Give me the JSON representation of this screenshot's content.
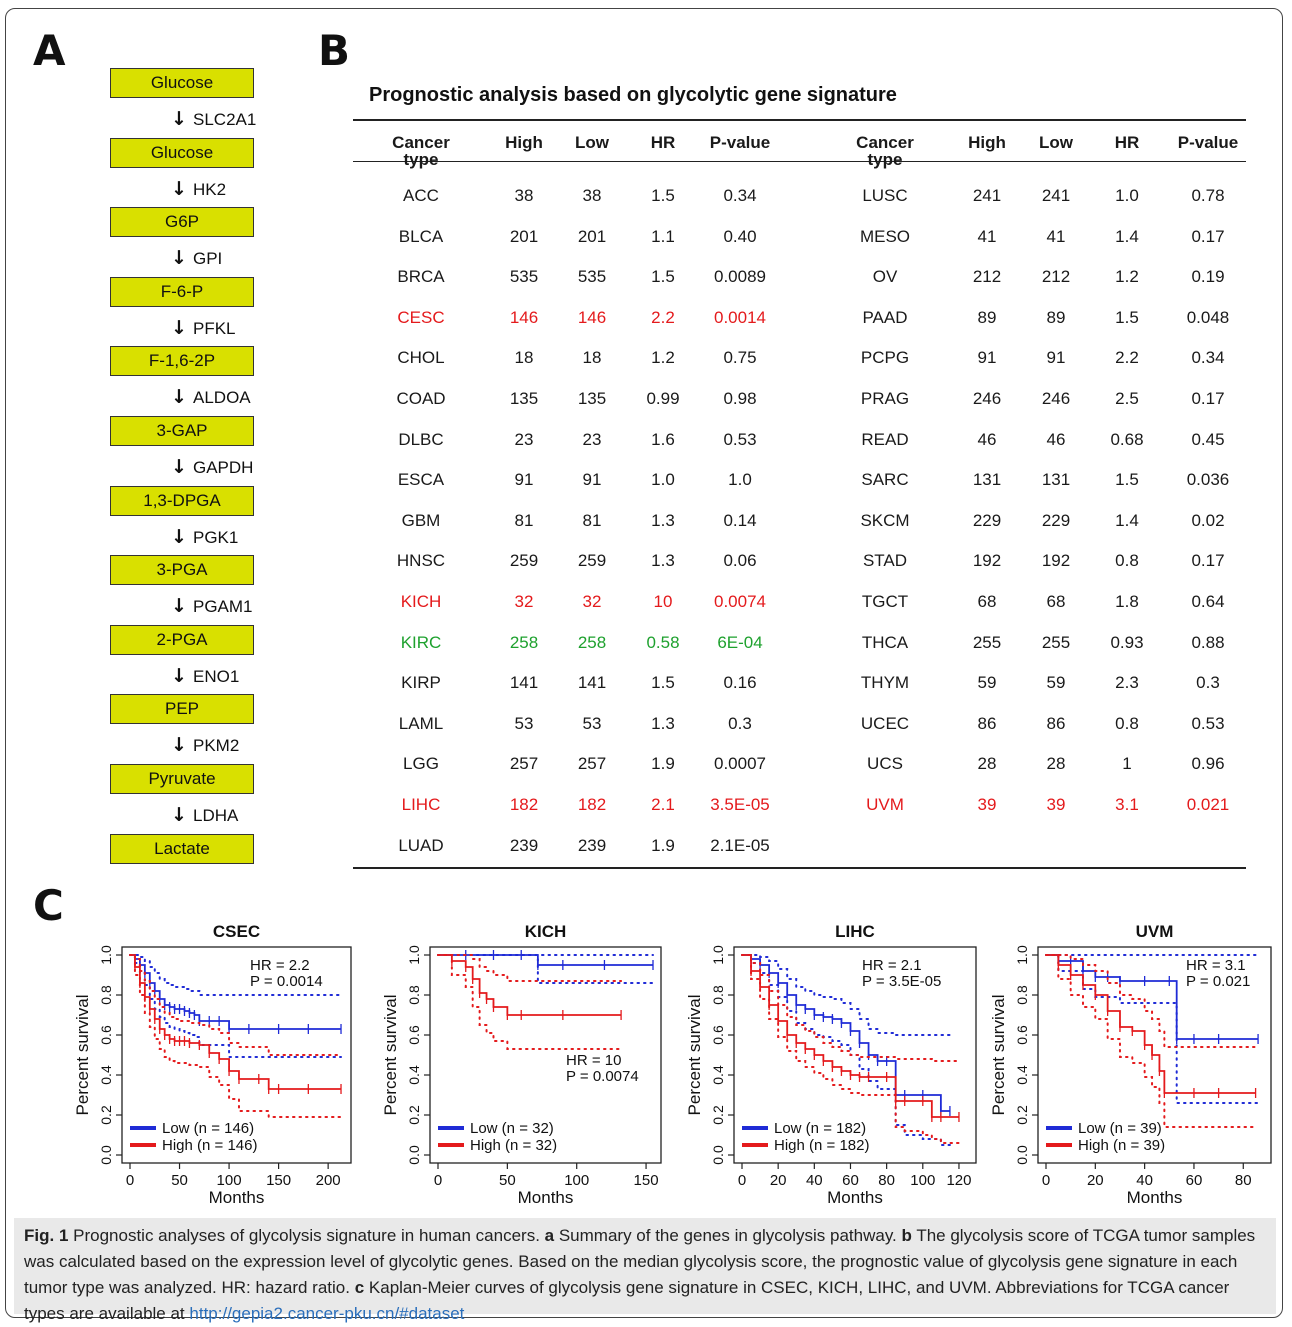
{
  "panel_labels": {
    "a": "A",
    "b": "B",
    "c": "C"
  },
  "pathway": {
    "metabolites": [
      "Glucose",
      "Glucose",
      "G6P",
      "F-6-P",
      "F-1,6-2P",
      "3-GAP",
      "1,3-DPGA",
      "3-PGA",
      "2-PGA",
      "PEP",
      "Pyruvate",
      "Lactate"
    ],
    "genes": [
      "SLC2A1",
      "HK2",
      "GPI",
      "PFKL",
      "ALDOA",
      "GAPDH",
      "PGK1",
      "PGAM1",
      "ENO1",
      "PKM2",
      "LDHA"
    ],
    "box_color": "#d9e000"
  },
  "table": {
    "title": "Prognostic analysis based on glycolytic gene signature",
    "headers": [
      "Cancer type",
      "High",
      "Low",
      "HR",
      "P-value"
    ],
    "colors": {
      "red": "#e41a1c",
      "green": "#1ea12e"
    },
    "left": [
      {
        "type": "ACC",
        "high": "38",
        "low": "38",
        "hr": "1.5",
        "p": "0.34",
        "color": ""
      },
      {
        "type": "BLCA",
        "high": "201",
        "low": "201",
        "hr": "1.1",
        "p": "0.40",
        "color": ""
      },
      {
        "type": "BRCA",
        "high": "535",
        "low": "535",
        "hr": "1.5",
        "p": "0.0089",
        "color": ""
      },
      {
        "type": "CESC",
        "high": "146",
        "low": "146",
        "hr": "2.2",
        "p": "0.0014",
        "color": "red"
      },
      {
        "type": "CHOL",
        "high": "18",
        "low": "18",
        "hr": "1.2",
        "p": "0.75",
        "color": ""
      },
      {
        "type": "COAD",
        "high": "135",
        "low": "135",
        "hr": "0.99",
        "p": "0.98",
        "color": ""
      },
      {
        "type": "DLBC",
        "high": "23",
        "low": "23",
        "hr": "1.6",
        "p": "0.53",
        "color": ""
      },
      {
        "type": "ESCA",
        "high": "91",
        "low": "91",
        "hr": "1.0",
        "p": "1.0",
        "color": ""
      },
      {
        "type": "GBM",
        "high": "81",
        "low": "81",
        "hr": "1.3",
        "p": "0.14",
        "color": ""
      },
      {
        "type": "HNSC",
        "high": "259",
        "low": "259",
        "hr": "1.3",
        "p": "0.06",
        "color": ""
      },
      {
        "type": "KICH",
        "high": "32",
        "low": "32",
        "hr": "10",
        "p": "0.0074",
        "color": "red"
      },
      {
        "type": "KIRC",
        "high": "258",
        "low": "258",
        "hr": "0.58",
        "p": "6E-04",
        "color": "green"
      },
      {
        "type": "KIRP",
        "high": "141",
        "low": "141",
        "hr": "1.5",
        "p": "0.16",
        "color": ""
      },
      {
        "type": "LAML",
        "high": "53",
        "low": "53",
        "hr": "1.3",
        "p": "0.3",
        "color": ""
      },
      {
        "type": "LGG",
        "high": "257",
        "low": "257",
        "hr": "1.9",
        "p": "0.0007",
        "color": ""
      },
      {
        "type": "LIHC",
        "high": "182",
        "low": "182",
        "hr": "2.1",
        "p": "3.5E-05",
        "color": "red"
      },
      {
        "type": "LUAD",
        "high": "239",
        "low": "239",
        "hr": "1.9",
        "p": "2.1E-05",
        "color": ""
      }
    ],
    "right": [
      {
        "type": "LUSC",
        "high": "241",
        "low": "241",
        "hr": "1.0",
        "p": "0.78",
        "color": ""
      },
      {
        "type": "MESO",
        "high": "41",
        "low": "41",
        "hr": "1.4",
        "p": "0.17",
        "color": ""
      },
      {
        "type": "OV",
        "high": "212",
        "low": "212",
        "hr": "1.2",
        "p": "0.19",
        "color": ""
      },
      {
        "type": "PAAD",
        "high": "89",
        "low": "89",
        "hr": "1.5",
        "p": "0.048",
        "color": ""
      },
      {
        "type": "PCPG",
        "high": "91",
        "low": "91",
        "hr": "2.2",
        "p": "0.34",
        "color": ""
      },
      {
        "type": "PRAG",
        "high": "246",
        "low": "246",
        "hr": "2.5",
        "p": "0.17",
        "color": ""
      },
      {
        "type": "READ",
        "high": "46",
        "low": "46",
        "hr": "0.68",
        "p": "0.45",
        "color": ""
      },
      {
        "type": "SARC",
        "high": "131",
        "low": "131",
        "hr": "1.5",
        "p": "0.036",
        "color": ""
      },
      {
        "type": "SKCM",
        "high": "229",
        "low": "229",
        "hr": "1.4",
        "p": "0.02",
        "color": ""
      },
      {
        "type": "STAD",
        "high": "192",
        "low": "192",
        "hr": "0.8",
        "p": "0.17",
        "color": ""
      },
      {
        "type": "TGCT",
        "high": "68",
        "low": "68",
        "hr": "1.8",
        "p": "0.64",
        "color": ""
      },
      {
        "type": "THCA",
        "high": "255",
        "low": "255",
        "hr": "0.93",
        "p": "0.88",
        "color": ""
      },
      {
        "type": "THYM",
        "high": "59",
        "low": "59",
        "hr": "2.3",
        "p": "0.3",
        "color": ""
      },
      {
        "type": "UCEC",
        "high": "86",
        "low": "86",
        "hr": "0.8",
        "p": "0.53",
        "color": ""
      },
      {
        "type": "UCS",
        "high": "28",
        "low": "28",
        "hr": "1",
        "p": "0.96",
        "color": ""
      },
      {
        "type": "UVM",
        "high": "39",
        "low": "39",
        "hr": "3.1",
        "p": "0.021",
        "color": "red"
      }
    ]
  },
  "chart_data": [
    {
      "type": "line",
      "title": "CSEC",
      "xlabel": "Months",
      "ylabel": "Percent survival",
      "xlim": [
        0,
        215
      ],
      "ylim": [
        0,
        1
      ],
      "xticks": [
        0,
        50,
        100,
        150,
        200
      ],
      "yticks": [
        0.0,
        0.2,
        0.4,
        0.6,
        0.8,
        1.0
      ],
      "annotation": [
        "HR = 2.2",
        "P = 0.0014"
      ],
      "legend": "bottom-left",
      "series": [
        {
          "name": "Low (n = 146)",
          "color": "#1f2bd6",
          "x": [
            0,
            5,
            10,
            15,
            20,
            25,
            30,
            35,
            40,
            45,
            50,
            55,
            60,
            65,
            70,
            80,
            90,
            100,
            120,
            150,
            180,
            213
          ],
          "y": [
            1.0,
            0.98,
            0.95,
            0.91,
            0.86,
            0.82,
            0.78,
            0.75,
            0.74,
            0.73,
            0.73,
            0.72,
            0.71,
            0.7,
            0.67,
            0.67,
            0.67,
            0.63,
            0.63,
            0.63,
            0.63,
            0.63
          ],
          "upper": [
            1.0,
            1.0,
            0.99,
            0.97,
            0.94,
            0.91,
            0.88,
            0.86,
            0.85,
            0.84,
            0.84,
            0.83,
            0.82,
            0.82,
            0.8,
            0.8,
            0.8,
            0.8,
            0.8,
            0.8,
            0.8,
            0.8
          ],
          "lower": [
            1.0,
            0.96,
            0.91,
            0.85,
            0.78,
            0.73,
            0.69,
            0.66,
            0.64,
            0.63,
            0.62,
            0.61,
            0.6,
            0.59,
            0.55,
            0.55,
            0.55,
            0.49,
            0.49,
            0.49,
            0.49,
            0.49
          ]
        },
        {
          "name": "High (n = 146)",
          "color": "#e41a1c",
          "x": [
            0,
            5,
            10,
            15,
            20,
            25,
            30,
            35,
            40,
            45,
            50,
            55,
            60,
            70,
            80,
            90,
            100,
            110,
            130,
            140,
            150,
            180,
            213
          ],
          "y": [
            1.0,
            0.94,
            0.86,
            0.79,
            0.73,
            0.68,
            0.63,
            0.6,
            0.58,
            0.57,
            0.57,
            0.57,
            0.56,
            0.55,
            0.51,
            0.48,
            0.42,
            0.38,
            0.38,
            0.33,
            0.33,
            0.33,
            0.33
          ],
          "upper": [
            1.0,
            0.98,
            0.92,
            0.87,
            0.82,
            0.78,
            0.74,
            0.71,
            0.69,
            0.68,
            0.67,
            0.67,
            0.66,
            0.65,
            0.63,
            0.61,
            0.56,
            0.54,
            0.54,
            0.5,
            0.5,
            0.5,
            0.5
          ],
          "lower": [
            1.0,
            0.9,
            0.8,
            0.71,
            0.64,
            0.58,
            0.53,
            0.49,
            0.47,
            0.46,
            0.46,
            0.46,
            0.45,
            0.44,
            0.39,
            0.35,
            0.28,
            0.22,
            0.22,
            0.19,
            0.19,
            0.19,
            0.19
          ]
        }
      ]
    },
    {
      "type": "line",
      "title": "KICH",
      "xlabel": "Months",
      "ylabel": "Percent survival",
      "xlim": [
        0,
        155
      ],
      "ylim": [
        0,
        1
      ],
      "xticks": [
        0,
        50,
        100,
        150
      ],
      "yticks": [
        0.0,
        0.2,
        0.4,
        0.6,
        0.8,
        1.0
      ],
      "annotation": [
        "HR = 10",
        "P = 0.0074"
      ],
      "legend": "bottom-left",
      "series": [
        {
          "name": "Low (n = 32)",
          "color": "#1f2bd6",
          "x": [
            0,
            20,
            40,
            60,
            72,
            90,
            120,
            155
          ],
          "y": [
            1.0,
            1.0,
            1.0,
            1.0,
            0.95,
            0.95,
            0.95,
            0.95
          ],
          "upper": [
            1.0,
            1.0,
            1.0,
            1.0,
            1.0,
            1.0,
            1.0,
            1.0
          ],
          "lower": [
            1.0,
            1.0,
            1.0,
            1.0,
            0.86,
            0.86,
            0.86,
            0.86
          ]
        },
        {
          "name": "High (n = 32)",
          "color": "#e41a1c",
          "x": [
            0,
            10,
            20,
            25,
            30,
            35,
            40,
            50,
            60,
            90,
            132
          ],
          "y": [
            1.0,
            0.97,
            0.94,
            0.88,
            0.81,
            0.78,
            0.74,
            0.7,
            0.7,
            0.7,
            0.7
          ],
          "upper": [
            1.0,
            1.0,
            1.0,
            0.98,
            0.94,
            0.92,
            0.9,
            0.87,
            0.87,
            0.87,
            0.87
          ],
          "lower": [
            1.0,
            0.9,
            0.84,
            0.74,
            0.65,
            0.61,
            0.57,
            0.53,
            0.53,
            0.53,
            0.53
          ]
        }
      ]
    },
    {
      "type": "line",
      "title": "LIHC",
      "xlabel": "Months",
      "ylabel": "Percent survival",
      "xlim": [
        0,
        125
      ],
      "ylim": [
        0,
        1
      ],
      "xticks": [
        0,
        20,
        40,
        60,
        80,
        100,
        120
      ],
      "yticks": [
        0.0,
        0.2,
        0.4,
        0.6,
        0.8,
        1.0
      ],
      "annotation": [
        "HR = 2.1",
        "P = 3.5E-05"
      ],
      "legend": "bottom-left",
      "series": [
        {
          "name": "Low (n = 182)",
          "color": "#1f2bd6",
          "x": [
            0,
            5,
            10,
            15,
            20,
            25,
            30,
            35,
            40,
            45,
            50,
            55,
            60,
            65,
            70,
            75,
            80,
            85,
            90,
            100,
            110,
            115
          ],
          "y": [
            1.0,
            0.98,
            0.95,
            0.91,
            0.86,
            0.8,
            0.75,
            0.73,
            0.7,
            0.69,
            0.68,
            0.66,
            0.62,
            0.56,
            0.5,
            0.47,
            0.47,
            0.3,
            0.3,
            0.3,
            0.22,
            0.22
          ],
          "upper": [
            1.0,
            1.0,
            0.99,
            0.97,
            0.93,
            0.88,
            0.84,
            0.82,
            0.8,
            0.79,
            0.78,
            0.76,
            0.73,
            0.68,
            0.63,
            0.61,
            0.61,
            0.6,
            0.6,
            0.6,
            0.6,
            0.6
          ],
          "lower": [
            1.0,
            0.96,
            0.91,
            0.85,
            0.79,
            0.72,
            0.66,
            0.63,
            0.6,
            0.59,
            0.57,
            0.55,
            0.5,
            0.43,
            0.37,
            0.33,
            0.33,
            0.15,
            0.1,
            0.08,
            0.05,
            0.05
          ]
        },
        {
          "name": "High (n = 182)",
          "color": "#e41a1c",
          "x": [
            0,
            5,
            10,
            15,
            20,
            25,
            30,
            35,
            40,
            45,
            50,
            55,
            60,
            65,
            70,
            80,
            85,
            90,
            100,
            105,
            110,
            120
          ],
          "y": [
            1.0,
            0.92,
            0.84,
            0.75,
            0.67,
            0.6,
            0.56,
            0.53,
            0.5,
            0.47,
            0.44,
            0.42,
            0.4,
            0.39,
            0.39,
            0.39,
            0.27,
            0.27,
            0.27,
            0.19,
            0.19,
            0.19
          ],
          "upper": [
            1.0,
            0.96,
            0.9,
            0.82,
            0.75,
            0.69,
            0.65,
            0.62,
            0.59,
            0.56,
            0.54,
            0.52,
            0.5,
            0.49,
            0.49,
            0.49,
            0.48,
            0.48,
            0.48,
            0.47,
            0.47,
            0.47
          ],
          "lower": [
            1.0,
            0.88,
            0.78,
            0.68,
            0.59,
            0.52,
            0.47,
            0.44,
            0.41,
            0.38,
            0.35,
            0.33,
            0.31,
            0.3,
            0.3,
            0.3,
            0.14,
            0.12,
            0.1,
            0.08,
            0.06,
            0.06
          ]
        }
      ]
    },
    {
      "type": "line",
      "title": "UVM",
      "xlabel": "Months",
      "ylabel": "Percent survival",
      "xlim": [
        0,
        88
      ],
      "ylim": [
        0,
        1
      ],
      "xticks": [
        0,
        20,
        40,
        60,
        80
      ],
      "yticks": [
        0.0,
        0.2,
        0.4,
        0.6,
        0.8,
        1.0
      ],
      "annotation": [
        "HR = 3.1",
        "P = 0.021"
      ],
      "legend": "bottom-left",
      "series": [
        {
          "name": "Low (n = 39)",
          "color": "#1f2bd6",
          "x": [
            0,
            5,
            10,
            15,
            20,
            25,
            30,
            40,
            50,
            53,
            60,
            70,
            86
          ],
          "y": [
            1.0,
            0.97,
            0.97,
            0.92,
            0.89,
            0.89,
            0.87,
            0.87,
            0.87,
            0.58,
            0.58,
            0.58,
            0.58
          ],
          "upper": [
            1.0,
            1.0,
            1.0,
            1.0,
            1.0,
            1.0,
            1.0,
            1.0,
            1.0,
            1.0,
            1.0,
            1.0,
            1.0
          ],
          "lower": [
            1.0,
            0.92,
            0.92,
            0.83,
            0.79,
            0.79,
            0.76,
            0.76,
            0.76,
            0.26,
            0.26,
            0.26,
            0.26
          ]
        },
        {
          "name": "High (n = 39)",
          "color": "#e41a1c",
          "x": [
            0,
            5,
            10,
            15,
            20,
            25,
            30,
            35,
            40,
            43,
            46,
            48,
            60,
            70,
            85
          ],
          "y": [
            1.0,
            0.95,
            0.9,
            0.85,
            0.8,
            0.72,
            0.64,
            0.62,
            0.55,
            0.5,
            0.42,
            0.31,
            0.31,
            0.31,
            0.31
          ],
          "upper": [
            1.0,
            1.0,
            0.98,
            0.95,
            0.92,
            0.86,
            0.8,
            0.78,
            0.72,
            0.68,
            0.62,
            0.54,
            0.54,
            0.54,
            0.54
          ],
          "lower": [
            1.0,
            0.88,
            0.8,
            0.74,
            0.68,
            0.58,
            0.49,
            0.46,
            0.39,
            0.34,
            0.26,
            0.14,
            0.14,
            0.14,
            0.14
          ]
        }
      ]
    }
  ],
  "caption": {
    "fig_label": "Fig. 1",
    "part1": " Prognostic analyses of glycolysis signature in human cancers. ",
    "a": "a",
    "part2": " Summary of the genes in glycolysis pathway. ",
    "b": "b",
    "part3": " The glycolysis score of TCGA tumor samples was calculated based on the expression level of glycolytic genes. Based on the median glycolysis score, the prognostic value of glycolysis gene signature in each tumor type was analyzed. HR: hazard ratio. ",
    "c": "c",
    "part4": " Kaplan-Meier curves of glycolysis gene signature in CSEC, KICH, LIHC, and UVM. Abbreviations for TCGA cancer types are available at ",
    "link": "http://gepia2.cancer-pku.cn/#dataset"
  }
}
